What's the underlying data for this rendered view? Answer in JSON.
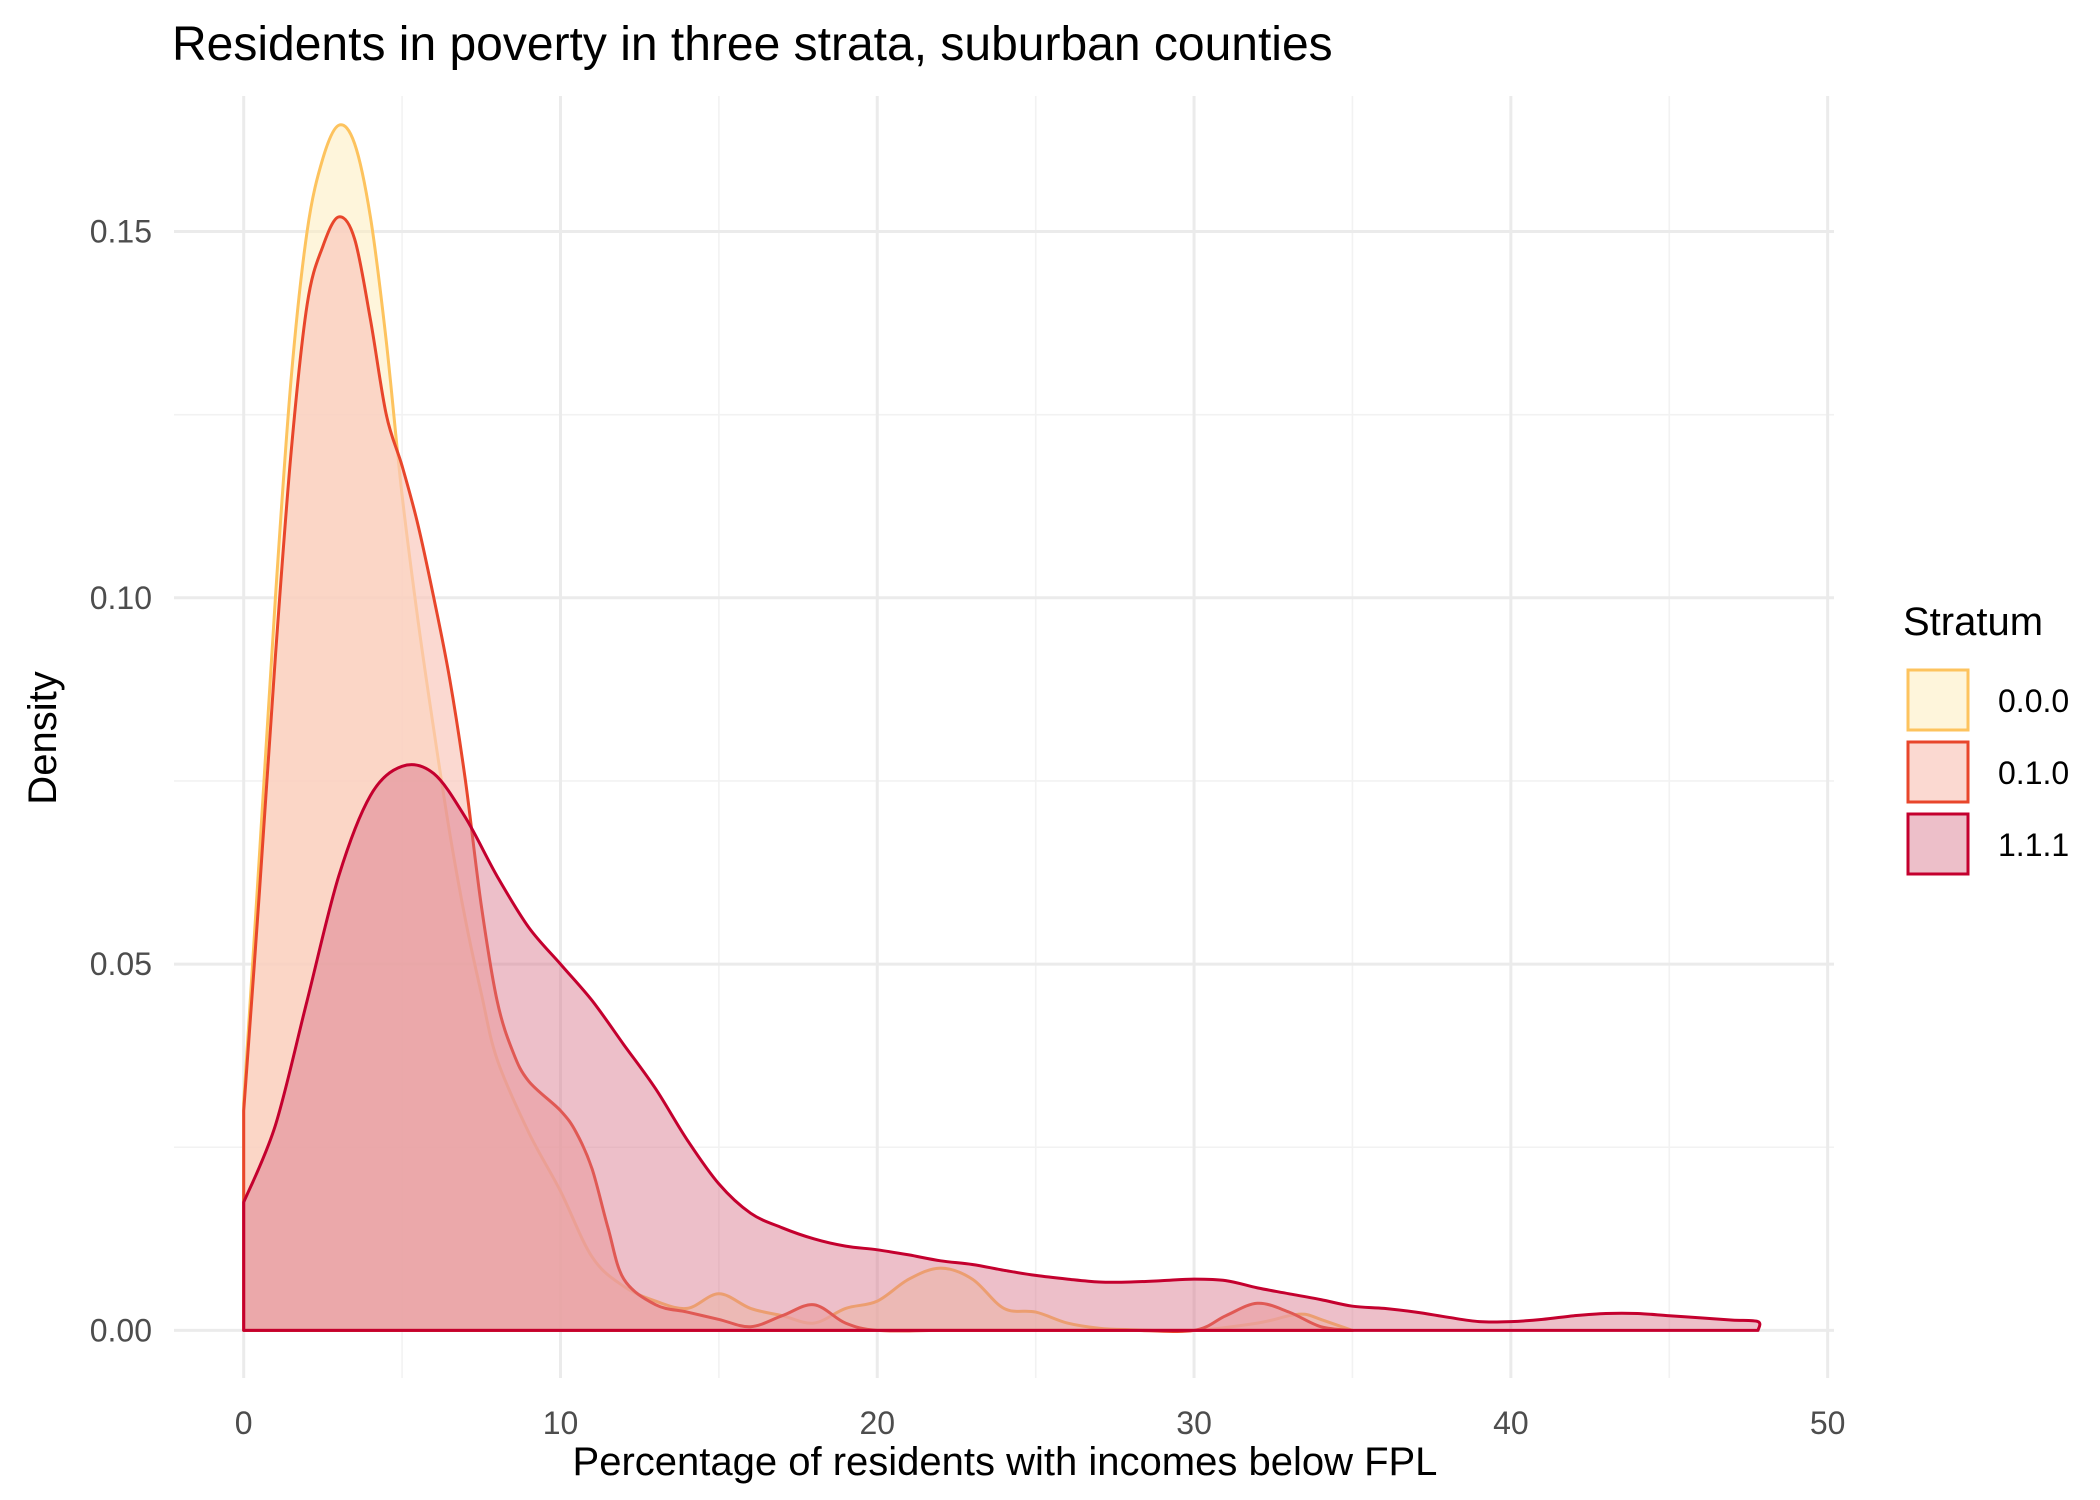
{
  "chart_data": {
    "type": "area",
    "title": "Residents in poverty in three strata, suburban counties",
    "xlabel": "Percentage of residents with incomes below FPL",
    "ylabel": "Density",
    "xlim": [
      -2.2,
      50.2
    ],
    "ylim": [
      -0.0065,
      0.1685
    ],
    "x_ticks": [
      0,
      10,
      20,
      30,
      40,
      50
    ],
    "x_tick_labels": [
      "0",
      "10",
      "20",
      "30",
      "40",
      "50"
    ],
    "y_ticks": [
      0.0,
      0.05,
      0.1,
      0.15
    ],
    "y_tick_labels": [
      "0.00",
      "0.05",
      "0.10",
      "0.15"
    ],
    "y_minor_ticks": [
      0.025,
      0.075,
      0.125
    ],
    "x_minor_ticks": [
      5,
      15,
      25,
      35,
      45
    ],
    "grid": true,
    "legend": {
      "title": "Stratum",
      "position": "right"
    },
    "series": [
      {
        "name": "0.0.0",
        "line_color": "#FDC35E",
        "fill_color": "#FEEDBE",
        "fill_opacity": 0.55,
        "points": [
          [
            0,
            0.031
          ],
          [
            0.5,
            0.065
          ],
          [
            1,
            0.1
          ],
          [
            1.5,
            0.13
          ],
          [
            2,
            0.15
          ],
          [
            2.5,
            0.16
          ],
          [
            3,
            0.1645
          ],
          [
            3.5,
            0.162
          ],
          [
            4,
            0.152
          ],
          [
            4.5,
            0.135
          ],
          [
            5,
            0.114
          ],
          [
            5.5,
            0.097
          ],
          [
            6,
            0.082
          ],
          [
            6.5,
            0.068
          ],
          [
            7,
            0.056
          ],
          [
            7.5,
            0.046
          ],
          [
            8,
            0.037
          ],
          [
            9,
            0.027
          ],
          [
            10,
            0.019
          ],
          [
            11,
            0.01
          ],
          [
            12,
            0.006
          ],
          [
            13,
            0.004
          ],
          [
            14,
            0.003
          ],
          [
            15,
            0.005
          ],
          [
            16,
            0.003
          ],
          [
            17,
            0.002
          ],
          [
            18,
            0.001
          ],
          [
            19,
            0.003
          ],
          [
            20,
            0.004
          ],
          [
            21,
            0.007
          ],
          [
            22,
            0.0085
          ],
          [
            23,
            0.007
          ],
          [
            24,
            0.003
          ],
          [
            25,
            0.0025
          ],
          [
            26,
            0.001
          ],
          [
            27,
            0.0003
          ],
          [
            28,
            0.0001
          ],
          [
            30,
            0.0
          ],
          [
            32,
            0.001
          ],
          [
            33,
            0.002
          ],
          [
            33.5,
            0.0022
          ],
          [
            34,
            0.0015
          ],
          [
            35,
            0.0
          ]
        ]
      },
      {
        "name": "0.1.0",
        "line_color": "#E8462B",
        "fill_color": "#F9C9BD",
        "fill_opacity": 0.7,
        "points": [
          [
            0,
            0.03
          ],
          [
            0.5,
            0.06
          ],
          [
            1,
            0.092
          ],
          [
            1.5,
            0.12
          ],
          [
            2,
            0.14
          ],
          [
            2.5,
            0.148
          ],
          [
            3,
            0.152
          ],
          [
            3.5,
            0.149
          ],
          [
            4,
            0.138
          ],
          [
            4.5,
            0.125
          ],
          [
            5,
            0.118
          ],
          [
            5.5,
            0.11
          ],
          [
            6,
            0.1
          ],
          [
            6.5,
            0.089
          ],
          [
            7,
            0.075
          ],
          [
            7.5,
            0.058
          ],
          [
            8,
            0.045
          ],
          [
            8.5,
            0.038
          ],
          [
            9,
            0.034
          ],
          [
            10,
            0.03
          ],
          [
            10.5,
            0.027
          ],
          [
            11,
            0.022
          ],
          [
            11.5,
            0.014
          ],
          [
            12,
            0.007
          ],
          [
            13,
            0.0035
          ],
          [
            14,
            0.0025
          ],
          [
            15,
            0.0015
          ],
          [
            16,
            0.0005
          ],
          [
            17,
            0.002
          ],
          [
            18,
            0.0035
          ],
          [
            19,
            0.001
          ],
          [
            20,
            0.0
          ],
          [
            22,
            0.0
          ],
          [
            25,
            0.0
          ],
          [
            28,
            0.0
          ],
          [
            30,
            0.0
          ],
          [
            31,
            0.002
          ],
          [
            32,
            0.0037
          ],
          [
            33,
            0.0025
          ],
          [
            34,
            0.0005
          ],
          [
            35,
            0.0
          ]
        ]
      },
      {
        "name": "1.1.1",
        "line_color": "#C4002E",
        "fill_color": "#D67187",
        "fill_opacity": 0.45,
        "points": [
          [
            0,
            0.0175
          ],
          [
            1,
            0.028
          ],
          [
            2,
            0.045
          ],
          [
            3,
            0.062
          ],
          [
            4,
            0.073
          ],
          [
            5,
            0.077
          ],
          [
            6,
            0.076
          ],
          [
            7,
            0.07
          ],
          [
            8,
            0.062
          ],
          [
            9,
            0.055
          ],
          [
            10,
            0.05
          ],
          [
            11,
            0.045
          ],
          [
            12,
            0.039
          ],
          [
            13,
            0.033
          ],
          [
            14,
            0.026
          ],
          [
            15,
            0.02
          ],
          [
            16,
            0.016
          ],
          [
            17,
            0.014
          ],
          [
            18,
            0.0125
          ],
          [
            19,
            0.0115
          ],
          [
            20,
            0.011
          ],
          [
            21,
            0.0103
          ],
          [
            22,
            0.0095
          ],
          [
            23,
            0.009
          ],
          [
            24,
            0.0082
          ],
          [
            25,
            0.0075
          ],
          [
            26,
            0.007
          ],
          [
            27,
            0.0066
          ],
          [
            28,
            0.0066
          ],
          [
            29,
            0.0068
          ],
          [
            30,
            0.007
          ],
          [
            31,
            0.0068
          ],
          [
            32,
            0.0058
          ],
          [
            33,
            0.005
          ],
          [
            34,
            0.0042
          ],
          [
            35,
            0.0033
          ],
          [
            36,
            0.003
          ],
          [
            37,
            0.0025
          ],
          [
            38,
            0.0018
          ],
          [
            39,
            0.0012
          ],
          [
            40,
            0.0012
          ],
          [
            41,
            0.0015
          ],
          [
            42,
            0.002
          ],
          [
            43,
            0.0023
          ],
          [
            44,
            0.0023
          ],
          [
            45,
            0.002
          ],
          [
            46,
            0.0017
          ],
          [
            47,
            0.0014
          ],
          [
            47.8,
            0.0012
          ],
          [
            47.8,
            0.0
          ]
        ]
      }
    ]
  }
}
